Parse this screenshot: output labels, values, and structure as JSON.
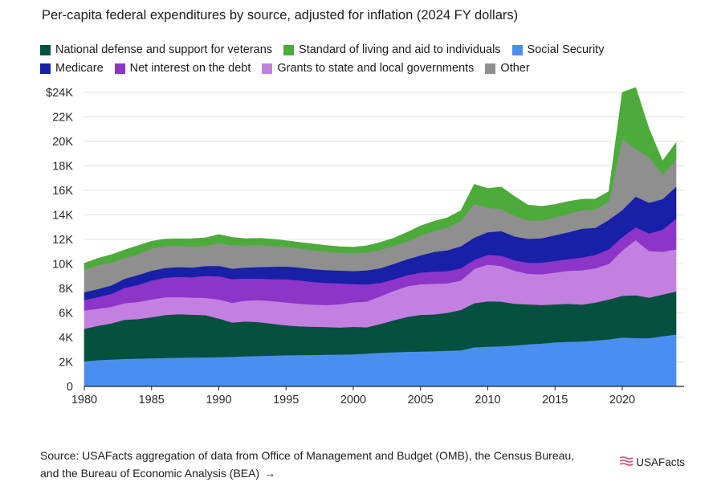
{
  "title": "Per-capita federal expenditures by source, adjusted for inflation (2024 FY dollars)",
  "source": {
    "text": "Source: USAFacts aggregation of data from Office of Management and Budget (OMB), the Census Bureau, and the Bureau of Economic Analysis (BEA)",
    "arrow": "→"
  },
  "brand": {
    "name": "USAFacts",
    "icon": "usafacts-flag-icon"
  },
  "chart_data": {
    "type": "area",
    "stacked": true,
    "title": "Per-capita federal expenditures by source, adjusted for inflation (2024 FY dollars)",
    "xlabel": "",
    "ylabel": "",
    "x": [
      1980,
      1981,
      1982,
      1983,
      1984,
      1985,
      1986,
      1987,
      1988,
      1989,
      1990,
      1991,
      1992,
      1993,
      1994,
      1995,
      1996,
      1997,
      1998,
      1999,
      2000,
      2001,
      2002,
      2003,
      2004,
      2005,
      2006,
      2007,
      2008,
      2009,
      2010,
      2011,
      2012,
      2013,
      2014,
      2015,
      2016,
      2017,
      2018,
      2019,
      2020,
      2021,
      2022,
      2023,
      2024
    ],
    "xlim": [
      1980,
      2024.6
    ],
    "ylim": [
      0,
      24000
    ],
    "x_ticks": [
      1980,
      1985,
      1990,
      1995,
      2000,
      2005,
      2010,
      2015,
      2020
    ],
    "x_tick_labels": [
      "1980",
      "1985",
      "1990",
      "1995",
      "2000",
      "2005",
      "2010",
      "2015",
      "2020"
    ],
    "y_ticks": [
      0,
      2000,
      4000,
      6000,
      8000,
      10000,
      12000,
      14000,
      16000,
      18000,
      20000,
      22000,
      24000
    ],
    "y_tick_labels": [
      "0",
      "2K",
      "4K",
      "6K",
      "8K",
      "10K",
      "12K",
      "14K",
      "16K",
      "18K",
      "20K",
      "22K",
      "$24K"
    ],
    "legend_position": "top",
    "series": [
      {
        "name": "Social Security",
        "color": "#4a8ff0",
        "values": [
          2050,
          2150,
          2200,
          2250,
          2280,
          2300,
          2330,
          2350,
          2360,
          2380,
          2400,
          2420,
          2460,
          2500,
          2520,
          2550,
          2560,
          2580,
          2600,
          2610,
          2620,
          2680,
          2750,
          2800,
          2830,
          2850,
          2880,
          2920,
          2950,
          3200,
          3250,
          3280,
          3350,
          3450,
          3500,
          3600,
          3650,
          3680,
          3750,
          3850,
          4000,
          3950,
          3950,
          4100,
          4250
        ]
      },
      {
        "name": "National defense and support for veterans",
        "color": "#06503f",
        "values": [
          2650,
          2800,
          2950,
          3200,
          3220,
          3350,
          3500,
          3550,
          3500,
          3450,
          3150,
          2800,
          2850,
          2750,
          2600,
          2450,
          2350,
          2300,
          2250,
          2200,
          2250,
          2150,
          2350,
          2600,
          2850,
          3000,
          3000,
          3100,
          3300,
          3600,
          3700,
          3650,
          3400,
          3250,
          3150,
          3100,
          3100,
          3000,
          3100,
          3250,
          3400,
          3500,
          3300,
          3400,
          3500
        ]
      },
      {
        "name": "Grants to state and local governments",
        "color": "#c480e0",
        "values": [
          1500,
          1400,
          1350,
          1350,
          1400,
          1450,
          1450,
          1400,
          1400,
          1400,
          1550,
          1600,
          1700,
          1800,
          1850,
          1850,
          1850,
          1800,
          1800,
          1900,
          2000,
          2100,
          2250,
          2400,
          2500,
          2500,
          2500,
          2400,
          2400,
          2800,
          3000,
          2900,
          2700,
          2500,
          2500,
          2600,
          2700,
          2800,
          2800,
          2900,
          3700,
          4500,
          3800,
          3500,
          3450
        ]
      },
      {
        "name": "Net interest on the debt",
        "color": "#8c35c8",
        "values": [
          850,
          950,
          1050,
          1250,
          1400,
          1550,
          1600,
          1650,
          1650,
          1800,
          1900,
          1950,
          1800,
          1750,
          1800,
          1900,
          1900,
          1850,
          1800,
          1700,
          1500,
          1400,
          1100,
          950,
          900,
          950,
          1000,
          1000,
          1000,
          750,
          800,
          850,
          850,
          900,
          950,
          950,
          950,
          1050,
          1100,
          1200,
          1100,
          1050,
          1450,
          1800,
          2500
        ]
      },
      {
        "name": "Medicare",
        "color": "#1720a6",
        "values": [
          650,
          650,
          700,
          750,
          800,
          800,
          800,
          800,
          800,
          800,
          850,
          850,
          900,
          950,
          1000,
          1050,
          1050,
          1050,
          1050,
          1050,
          1050,
          1150,
          1200,
          1250,
          1300,
          1400,
          1600,
          1700,
          1800,
          1800,
          1850,
          2000,
          1950,
          1950,
          2000,
          2100,
          2200,
          2350,
          2200,
          2400,
          2200,
          2500,
          2500,
          2500,
          2600
        ]
      },
      {
        "name": "Other",
        "color": "#8f8f8f",
        "values": [
          1850,
          1950,
          1850,
          1700,
          1700,
          1800,
          1800,
          1750,
          1700,
          1650,
          1850,
          1900,
          1800,
          1800,
          1700,
          1600,
          1550,
          1550,
          1500,
          1450,
          1450,
          1450,
          1500,
          1450,
          1450,
          1600,
          1700,
          1850,
          2050,
          2750,
          2000,
          1800,
          1700,
          1500,
          1450,
          1450,
          1500,
          1500,
          1500,
          1500,
          5800,
          3900,
          3700,
          2000,
          2200
        ]
      },
      {
        "name": "Standard of living and aid to individuals",
        "color": "#4dab3b",
        "values": [
          500,
          550,
          650,
          650,
          700,
          600,
          550,
          550,
          650,
          650,
          700,
          650,
          550,
          550,
          550,
          500,
          500,
          500,
          500,
          500,
          500,
          550,
          600,
          650,
          750,
          800,
          800,
          800,
          850,
          1600,
          1550,
          1800,
          1550,
          1250,
          1150,
          1050,
          1000,
          900,
          850,
          800,
          3800,
          5000,
          2300,
          1100,
          1400
        ]
      }
    ],
    "legend_order": [
      "National defense and support for veterans",
      "Standard of living and aid to individuals",
      "Social Security",
      "Medicare",
      "Net interest on the debt",
      "Grants to state and local governments",
      "Other"
    ]
  }
}
